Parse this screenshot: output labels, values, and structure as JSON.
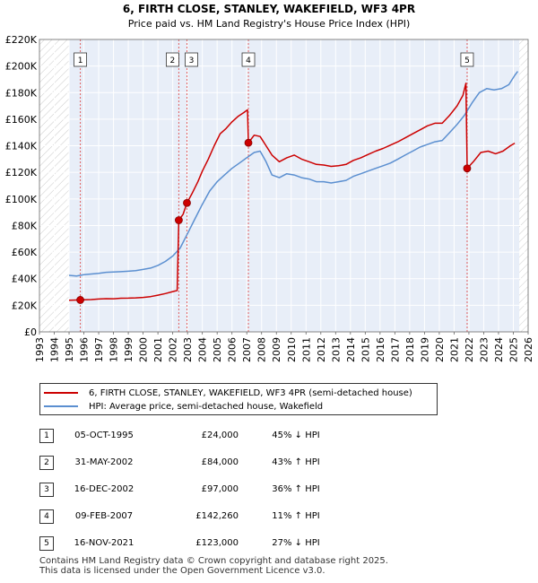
{
  "chart_data": {
    "type": "line",
    "title": "6, FIRTH CLOSE, STANLEY, WAKEFIELD, WF3 4PR",
    "subtitle": "Price paid vs. HM Land Registry's House Price Index (HPI)",
    "xlim": [
      1993,
      2026
    ],
    "ylim": [
      0,
      220000
    ],
    "x_ticks": [
      "1993",
      "1994",
      "1995",
      "1996",
      "1997",
      "1998",
      "1999",
      "2000",
      "2001",
      "2002",
      "2003",
      "2004",
      "2005",
      "2006",
      "2007",
      "2008",
      "2009",
      "2010",
      "2011",
      "2012",
      "2013",
      "2014",
      "2015",
      "2016",
      "2017",
      "2018",
      "2019",
      "2020",
      "2021",
      "2022",
      "2023",
      "2024",
      "2025",
      "2026"
    ],
    "y_ticks": [
      {
        "value": 0,
        "label": "£0"
      },
      {
        "value": 20000,
        "label": "£20K"
      },
      {
        "value": 40000,
        "label": "£40K"
      },
      {
        "value": 60000,
        "label": "£60K"
      },
      {
        "value": 80000,
        "label": "£80K"
      },
      {
        "value": 100000,
        "label": "£100K"
      },
      {
        "value": 120000,
        "label": "£120K"
      },
      {
        "value": 140000,
        "label": "£140K"
      },
      {
        "value": 160000,
        "label": "£160K"
      },
      {
        "value": 180000,
        "label": "£180K"
      },
      {
        "value": 200000,
        "label": "£200K"
      },
      {
        "value": 220000,
        "label": "£220K"
      }
    ],
    "data_start_year": 1995,
    "data_end_year": 2025.4,
    "hatch_before": 1995,
    "hatch_after": 2025.4,
    "series": [
      {
        "name": "6, FIRTH CLOSE, STANLEY, WAKEFIELD, WF3 4PR (semi-detached house)",
        "color": "#cc0000",
        "points": [
          [
            1995.0,
            23800
          ],
          [
            1995.76,
            24000
          ],
          [
            1996.5,
            24300
          ],
          [
            1997.0,
            24700
          ],
          [
            1997.5,
            25000
          ],
          [
            1998.0,
            24900
          ],
          [
            1998.5,
            25300
          ],
          [
            1999.0,
            25400
          ],
          [
            1999.5,
            25600
          ],
          [
            2000.0,
            25900
          ],
          [
            2000.5,
            26500
          ],
          [
            2001.0,
            27600
          ],
          [
            2001.5,
            28800
          ],
          [
            2002.0,
            30300
          ],
          [
            2002.3,
            31100
          ],
          [
            2002.41,
            84000
          ],
          [
            2002.7,
            88500
          ],
          [
            2002.96,
            97000
          ],
          [
            2003.3,
            104000
          ],
          [
            2003.7,
            113000
          ],
          [
            2004.0,
            121000
          ],
          [
            2004.4,
            130000
          ],
          [
            2004.8,
            140000
          ],
          [
            2005.2,
            149000
          ],
          [
            2005.6,
            153000
          ],
          [
            2006.0,
            158000
          ],
          [
            2006.4,
            162000
          ],
          [
            2006.8,
            165000
          ],
          [
            2007.05,
            167000
          ],
          [
            2007.11,
            142260
          ],
          [
            2007.5,
            148000
          ],
          [
            2007.9,
            147000
          ],
          [
            2008.3,
            140000
          ],
          [
            2008.7,
            133000
          ],
          [
            2009.2,
            128000
          ],
          [
            2009.7,
            131000
          ],
          [
            2010.2,
            133000
          ],
          [
            2010.7,
            130000
          ],
          [
            2011.2,
            128000
          ],
          [
            2011.7,
            126000
          ],
          [
            2012.2,
            125500
          ],
          [
            2012.7,
            124500
          ],
          [
            2013.2,
            125000
          ],
          [
            2013.7,
            126000
          ],
          [
            2014.2,
            129000
          ],
          [
            2014.7,
            131000
          ],
          [
            2015.2,
            133500
          ],
          [
            2015.7,
            136000
          ],
          [
            2016.2,
            138000
          ],
          [
            2016.7,
            140500
          ],
          [
            2017.2,
            143000
          ],
          [
            2017.7,
            146000
          ],
          [
            2018.2,
            149000
          ],
          [
            2018.7,
            152000
          ],
          [
            2019.2,
            155000
          ],
          [
            2019.7,
            157000
          ],
          [
            2020.2,
            157000
          ],
          [
            2020.7,
            163000
          ],
          [
            2021.2,
            170000
          ],
          [
            2021.6,
            178000
          ],
          [
            2021.8,
            187000
          ],
          [
            2021.88,
            123000
          ],
          [
            2022.3,
            128000
          ],
          [
            2022.8,
            135000
          ],
          [
            2023.3,
            136000
          ],
          [
            2023.8,
            134000
          ],
          [
            2024.3,
            136000
          ],
          [
            2024.8,
            140000
          ],
          [
            2025.1,
            142000
          ]
        ]
      },
      {
        "name": "HPI: Average price, semi-detached house, Wakefield",
        "color": "#5b8fd0",
        "points": [
          [
            1995.0,
            42500
          ],
          [
            1995.5,
            42000
          ],
          [
            1996.0,
            43000
          ],
          [
            1996.5,
            43500
          ],
          [
            1997.0,
            44000
          ],
          [
            1997.5,
            44800
          ],
          [
            1998.0,
            45000
          ],
          [
            1998.5,
            45300
          ],
          [
            1999.0,
            45600
          ],
          [
            1999.5,
            46000
          ],
          [
            2000.0,
            47000
          ],
          [
            2000.5,
            48000
          ],
          [
            2001.0,
            50000
          ],
          [
            2001.5,
            53000
          ],
          [
            2002.0,
            57000
          ],
          [
            2002.5,
            63000
          ],
          [
            2003.0,
            74000
          ],
          [
            2003.5,
            85000
          ],
          [
            2004.0,
            96000
          ],
          [
            2004.5,
            106000
          ],
          [
            2005.0,
            113000
          ],
          [
            2005.5,
            118000
          ],
          [
            2006.0,
            123000
          ],
          [
            2006.5,
            127000
          ],
          [
            2007.0,
            131000
          ],
          [
            2007.5,
            135000
          ],
          [
            2007.9,
            136000
          ],
          [
            2008.3,
            128000
          ],
          [
            2008.7,
            118000
          ],
          [
            2009.2,
            116000
          ],
          [
            2009.7,
            119000
          ],
          [
            2010.2,
            118000
          ],
          [
            2010.7,
            116000
          ],
          [
            2011.2,
            115000
          ],
          [
            2011.7,
            113000
          ],
          [
            2012.2,
            113000
          ],
          [
            2012.7,
            112000
          ],
          [
            2013.2,
            113000
          ],
          [
            2013.7,
            114000
          ],
          [
            2014.2,
            117000
          ],
          [
            2014.7,
            119000
          ],
          [
            2015.2,
            121000
          ],
          [
            2015.7,
            123000
          ],
          [
            2016.2,
            125000
          ],
          [
            2016.7,
            127000
          ],
          [
            2017.2,
            130000
          ],
          [
            2017.7,
            133000
          ],
          [
            2018.2,
            136000
          ],
          [
            2018.7,
            139000
          ],
          [
            2019.2,
            141000
          ],
          [
            2019.7,
            143000
          ],
          [
            2020.2,
            144000
          ],
          [
            2020.7,
            150000
          ],
          [
            2021.2,
            156000
          ],
          [
            2021.7,
            163000
          ],
          [
            2022.2,
            172000
          ],
          [
            2022.7,
            180000
          ],
          [
            2023.2,
            183000
          ],
          [
            2023.7,
            182000
          ],
          [
            2024.2,
            183000
          ],
          [
            2024.7,
            186000
          ],
          [
            2025.1,
            193000
          ],
          [
            2025.3,
            196000
          ]
        ]
      }
    ],
    "markers": [
      {
        "label": "1",
        "x": 1995.76,
        "y": 24000
      },
      {
        "label": "2",
        "x": 2002.41,
        "y": 84000
      },
      {
        "label": "3",
        "x": 2002.96,
        "y": 97000
      },
      {
        "label": "4",
        "x": 2007.11,
        "y": 142260
      },
      {
        "label": "5",
        "x": 2021.88,
        "y": 123000
      }
    ]
  },
  "legend": {
    "items": [
      {
        "label": "6, FIRTH CLOSE, STANLEY, WAKEFIELD, WF3 4PR (semi-detached house)",
        "color": "#cc0000"
      },
      {
        "label": "HPI: Average price, semi-detached house, Wakefield",
        "color": "#5b8fd0"
      }
    ]
  },
  "sales": [
    {
      "num": "1",
      "date": "05-OCT-1995",
      "price": "£24,000",
      "hpi": "45% ↓ HPI"
    },
    {
      "num": "2",
      "date": "31-MAY-2002",
      "price": "£84,000",
      "hpi": "43% ↑ HPI"
    },
    {
      "num": "3",
      "date": "16-DEC-2002",
      "price": "£97,000",
      "hpi": "36% ↑ HPI"
    },
    {
      "num": "4",
      "date": "09-FEB-2007",
      "price": "£142,260",
      "hpi": "11% ↑ HPI"
    },
    {
      "num": "5",
      "date": "16-NOV-2021",
      "price": "£123,000",
      "hpi": "27% ↓ HPI"
    }
  ],
  "footer": {
    "line1": "Contains HM Land Registry data © Crown copyright and database right 2025.",
    "line2": "This data is licensed under the Open Government Licence v3.0."
  }
}
